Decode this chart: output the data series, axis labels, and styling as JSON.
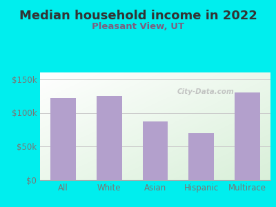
{
  "title": "Median household income in 2022",
  "subtitle": "Pleasant View, UT",
  "categories": [
    "All",
    "White",
    "Asian",
    "Hispanic",
    "Multirace"
  ],
  "values": [
    122000,
    125000,
    87000,
    70000,
    130000
  ],
  "bar_color": "#b3a0cc",
  "background_outer": "#00EEEE",
  "background_inner_grad_start": "#d8f0d8",
  "background_inner_grad_end": "#ffffff",
  "title_color": "#333333",
  "subtitle_color": "#7a6080",
  "tick_label_color": "#777777",
  "yticks": [
    0,
    50000,
    100000,
    150000
  ],
  "ytick_labels": [
    "$0",
    "$50k",
    "$100k",
    "$150k"
  ],
  "ylim": [
    0,
    160000
  ],
  "watermark": "City-Data.com",
  "title_fontsize": 13,
  "subtitle_fontsize": 9.5
}
